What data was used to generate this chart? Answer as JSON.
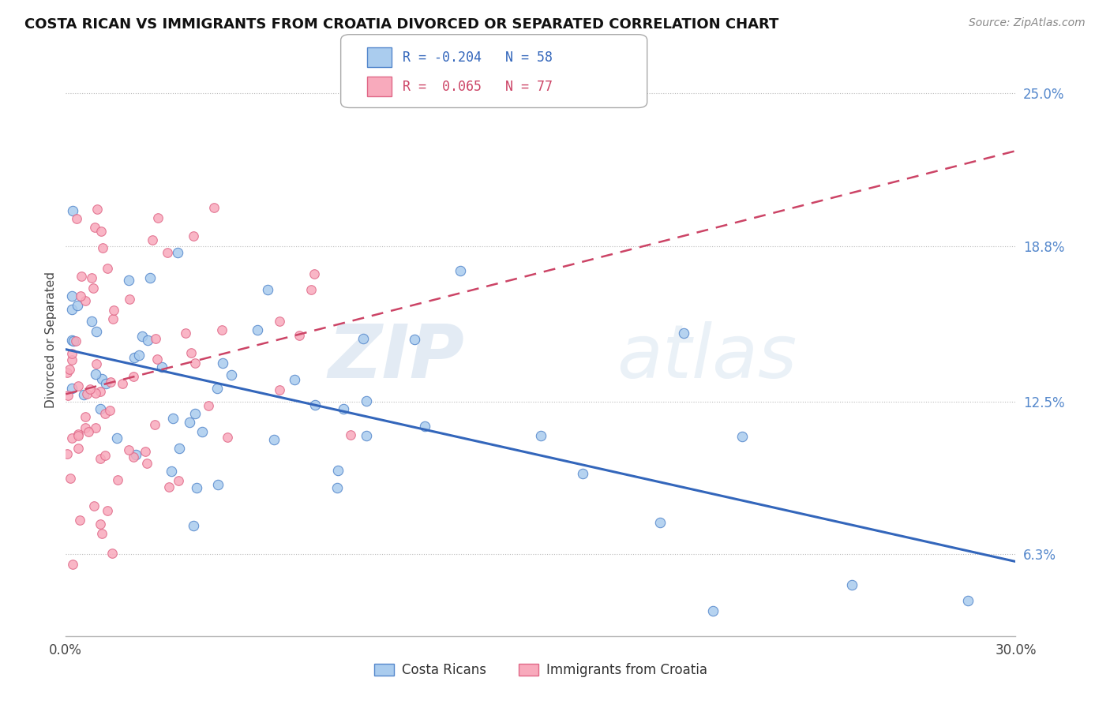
{
  "title": "COSTA RICAN VS IMMIGRANTS FROM CROATIA DIVORCED OR SEPARATED CORRELATION CHART",
  "source": "Source: ZipAtlas.com",
  "ylabel": "Divorced or Separated",
  "xmin": 0.0,
  "xmax": 30.0,
  "ymin": 3.0,
  "ymax": 27.0,
  "yticks": [
    6.3,
    12.5,
    18.8,
    25.0
  ],
  "ytick_labels": [
    "6.3%",
    "12.5%",
    "18.8%",
    "25.0%"
  ],
  "blue_color": "#aaccee",
  "blue_edge_color": "#5588cc",
  "pink_color": "#f8aabc",
  "pink_edge_color": "#e06888",
  "blue_line_color": "#3366bb",
  "pink_line_color": "#cc4466",
  "blue_R": -0.204,
  "blue_N": 58,
  "pink_R": 0.065,
  "pink_N": 77,
  "blue_legend": "Costa Ricans",
  "pink_legend": "Immigrants from Croatia",
  "watermark_zip": "ZIP",
  "watermark_atlas": "atlas",
  "title_fontsize": 13,
  "source_fontsize": 10,
  "legend_R_blue_color": "#3366bb",
  "legend_N_blue_color": "#3366bb",
  "legend_R_pink_color": "#cc4466",
  "legend_N_pink_color": "#cc4466"
}
